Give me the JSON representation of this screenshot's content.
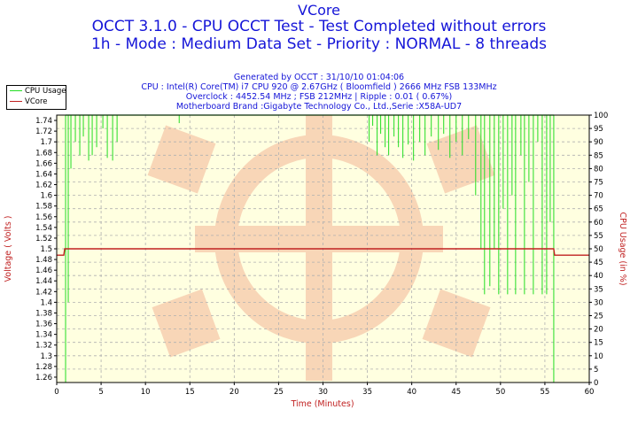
{
  "header": {
    "title1": "VCore",
    "title2": "OCCT 3.1.0 - CPU OCCT Test - Test Completed without errors",
    "title3": "1h - Mode : Medium Data Set - Priority : NORMAL - 8 threads",
    "sub1": "Generated by OCCT : 31/10/10 01:04:06",
    "sub2": "CPU : Intel(R) Core(TM) i7 CPU 920 @ 2.67GHz ( Bloomfield ) 2666 MHz FSB 133MHz",
    "sub3": "Overclock : 4452.54 MHz ; FSB 212MHz | Ripple : 0.01 ( 0.67%)",
    "sub4": "Motherboard Brand :Gigabyte Technology Co., Ltd.,Serie :X58A-UD7"
  },
  "colors": {
    "cpu_usage": "#22dd22",
    "vcore": "#c02020",
    "grid": "#b0b0b0",
    "plot_bg": "#ffffe0",
    "axis_text": "#c02020"
  },
  "legend": {
    "cpu_usage": "CPU Usage",
    "vcore": "VCore",
    "position": "top-left"
  },
  "chart_data": {
    "type": "line",
    "xlabel": "Time (Minutes)",
    "ylabel": "Voltage ( Volts )",
    "y2label": "CPU Usage (in %)",
    "xlim": [
      0,
      60
    ],
    "ylim": [
      1.25,
      1.75
    ],
    "y2lim": [
      0,
      100
    ],
    "x_ticks": [
      0,
      5,
      10,
      15,
      20,
      25,
      30,
      35,
      40,
      45,
      50,
      55,
      60
    ],
    "y_ticks": [
      1.26,
      1.28,
      1.3,
      1.32,
      1.34,
      1.36,
      1.38,
      1.4,
      1.42,
      1.44,
      1.46,
      1.48,
      1.5,
      1.52,
      1.54,
      1.56,
      1.58,
      1.6,
      1.62,
      1.64,
      1.66,
      1.68,
      1.7,
      1.72,
      1.74
    ],
    "y2_ticks": [
      0,
      5,
      10,
      15,
      20,
      25,
      30,
      35,
      40,
      45,
      50,
      55,
      60,
      65,
      70,
      75,
      80,
      85,
      90,
      95,
      100
    ],
    "grid": true,
    "series": [
      {
        "name": "VCore",
        "axis": "left",
        "x": [
          0,
          0.8,
          0.9,
          56.0,
          56.1,
          60
        ],
        "y": [
          1.488,
          1.488,
          1.5,
          1.5,
          1.488,
          1.488
        ]
      },
      {
        "name": "CPU Usage",
        "axis": "right",
        "baseline": 100,
        "x_start": 1.0,
        "x_end": 56.0,
        "dips": [
          {
            "x": 1.0,
            "min": 0
          },
          {
            "x": 1.3,
            "min": 30
          },
          {
            "x": 1.6,
            "min": 80
          },
          {
            "x": 2.1,
            "min": 90
          },
          {
            "x": 2.6,
            "min": 85
          },
          {
            "x": 3.0,
            "min": 92
          },
          {
            "x": 3.6,
            "min": 83
          },
          {
            "x": 4.0,
            "min": 85
          },
          {
            "x": 4.5,
            "min": 88
          },
          {
            "x": 5.2,
            "min": 95
          },
          {
            "x": 5.7,
            "min": 84
          },
          {
            "x": 6.3,
            "min": 83
          },
          {
            "x": 6.8,
            "min": 90
          },
          {
            "x": 13.8,
            "min": 97
          },
          {
            "x": 35.2,
            "min": 90
          },
          {
            "x": 35.6,
            "min": 96
          },
          {
            "x": 36.1,
            "min": 85
          },
          {
            "x": 36.5,
            "min": 93
          },
          {
            "x": 37.0,
            "min": 88
          },
          {
            "x": 37.4,
            "min": 85
          },
          {
            "x": 38.0,
            "min": 92
          },
          {
            "x": 38.5,
            "min": 88
          },
          {
            "x": 39.0,
            "min": 84
          },
          {
            "x": 39.6,
            "min": 89
          },
          {
            "x": 40.2,
            "min": 83
          },
          {
            "x": 40.9,
            "min": 90
          },
          {
            "x": 41.5,
            "min": 85
          },
          {
            "x": 42.2,
            "min": 92
          },
          {
            "x": 43.0,
            "min": 87
          },
          {
            "x": 43.6,
            "min": 93
          },
          {
            "x": 44.3,
            "min": 84
          },
          {
            "x": 45.0,
            "min": 90
          },
          {
            "x": 45.7,
            "min": 85
          },
          {
            "x": 46.4,
            "min": 91
          },
          {
            "x": 47.2,
            "min": 70
          },
          {
            "x": 47.8,
            "min": 50
          },
          {
            "x": 48.2,
            "min": 33
          },
          {
            "x": 48.8,
            "min": 36
          },
          {
            "x": 49.3,
            "min": 50
          },
          {
            "x": 49.8,
            "min": 33
          },
          {
            "x": 50.3,
            "min": 65
          },
          {
            "x": 50.8,
            "min": 33
          },
          {
            "x": 51.3,
            "min": 70
          },
          {
            "x": 51.7,
            "min": 33
          },
          {
            "x": 52.3,
            "min": 85
          },
          {
            "x": 52.7,
            "min": 33
          },
          {
            "x": 53.2,
            "min": 75
          },
          {
            "x": 53.7,
            "min": 33
          },
          {
            "x": 54.2,
            "min": 90
          },
          {
            "x": 54.7,
            "min": 33
          },
          {
            "x": 55.2,
            "min": 33
          },
          {
            "x": 55.6,
            "min": 60
          },
          {
            "x": 56.0,
            "min": 0
          }
        ]
      }
    ]
  }
}
